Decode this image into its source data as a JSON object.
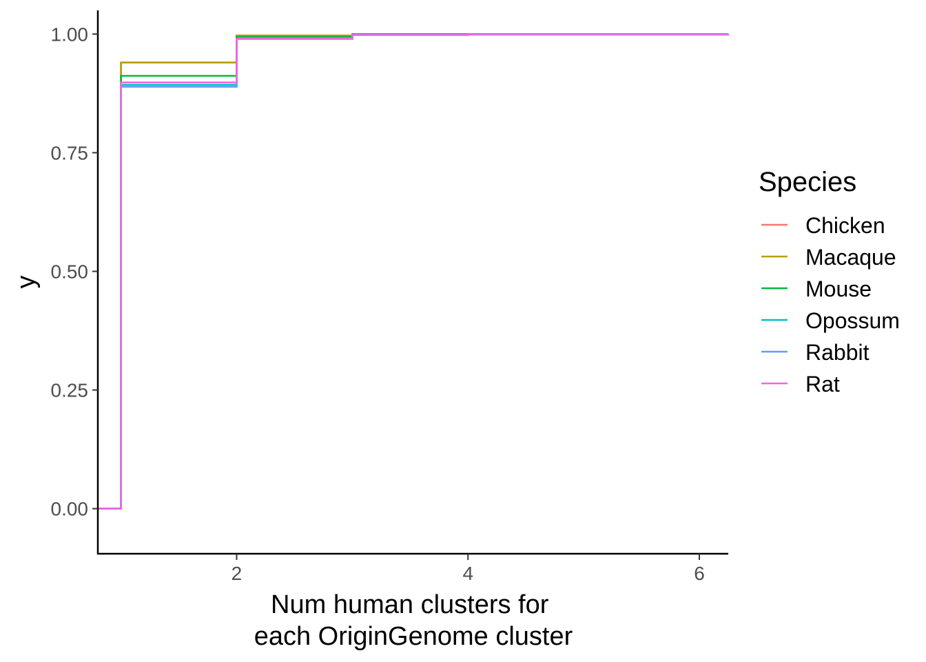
{
  "chart_data": {
    "type": "line",
    "subtype": "ecdf-step",
    "xlabel_lines": [
      "Num human clusters for",
      "each OriginGenome cluster"
    ],
    "ylabel": "y",
    "xlim": [
      0.8,
      6.25
    ],
    "ylim": [
      -0.095,
      1.05
    ],
    "x_ticks": [
      2,
      4,
      6
    ],
    "x_tick_labels": [
      "2",
      "4",
      "6"
    ],
    "y_ticks": [
      0,
      0.25,
      0.5,
      0.75,
      1
    ],
    "y_tick_labels": [
      "0.00",
      "0.25",
      "0.50",
      "0.75",
      "1.00"
    ],
    "grid": false,
    "legend": {
      "title": "Species",
      "position": "right"
    },
    "series": [
      {
        "name": "Chicken",
        "color": "#F8766D",
        "x": [
          0.8,
          1,
          2,
          3,
          5,
          6.25
        ],
        "y": [
          0,
          0.94,
          0.997,
          0.9995,
          1,
          1
        ]
      },
      {
        "name": "Macaque",
        "color": "#B79F00",
        "x": [
          0.8,
          1,
          2,
          3,
          6.25
        ],
        "y": [
          0,
          0.94,
          0.997,
          1,
          1
        ]
      },
      {
        "name": "Mouse",
        "color": "#00BA38",
        "x": [
          0.8,
          1,
          2,
          3,
          6.25
        ],
        "y": [
          0,
          0.912,
          0.994,
          1,
          1
        ]
      },
      {
        "name": "Opossum",
        "color": "#00BFC4",
        "x": [
          0.8,
          1,
          2,
          3,
          6.25
        ],
        "y": [
          0,
          0.893,
          0.99,
          0.999,
          1
        ]
      },
      {
        "name": "Rabbit",
        "color": "#619CFF",
        "x": [
          0.8,
          1,
          2,
          3,
          6.25
        ],
        "y": [
          0,
          0.889,
          0.99,
          0.999,
          1
        ]
      },
      {
        "name": "Rat",
        "color": "#F564E3",
        "x": [
          0.8,
          1,
          2,
          3,
          4,
          6.25
        ],
        "y": [
          0,
          0.898,
          0.99,
          0.998,
          1,
          1
        ]
      }
    ]
  }
}
